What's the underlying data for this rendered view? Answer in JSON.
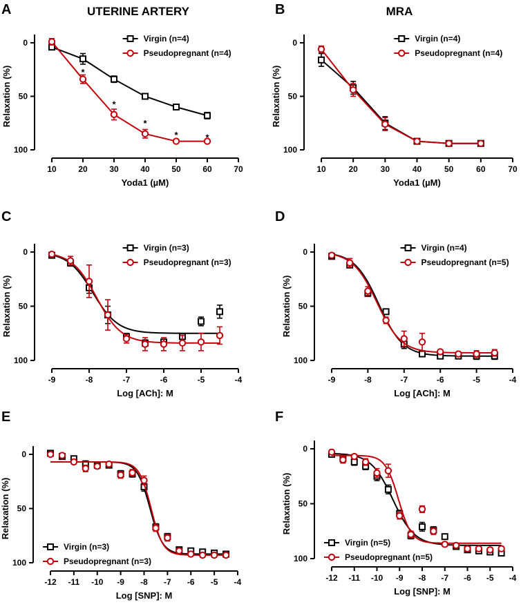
{
  "figure": {
    "colors": {
      "virgin": "#000000",
      "pseudopregnant": "#c0000b"
    }
  },
  "chart_data": [
    {
      "panel": "A",
      "title": "UTERINE ARTERY",
      "type": "line",
      "xlabel": "Yoda1 (µM)",
      "ylabel": "Relaxation (%)",
      "xlim": [
        10,
        70
      ],
      "ylim": [
        0,
        100
      ],
      "y_inverted": true,
      "xticks": [
        "10",
        "20",
        "30",
        "40",
        "50",
        "60",
        "70"
      ],
      "yticks": [
        "0",
        "50",
        "100"
      ],
      "legend_position": "top-right",
      "series": [
        {
          "name": "Virgin (n=4)",
          "marker": "square",
          "color": "#000000",
          "x": [
            10,
            20,
            30,
            40,
            50,
            60
          ],
          "y": [
            4,
            15,
            34,
            50,
            60,
            68
          ],
          "err": [
            2,
            5,
            3,
            2,
            2,
            3
          ]
        },
        {
          "name": "Pseudopregnant (n=4)",
          "marker": "circle",
          "color": "#c0000b",
          "x": [
            10,
            20,
            30,
            40,
            50,
            60
          ],
          "y": [
            -1,
            34,
            67,
            85,
            92,
            92
          ],
          "err": [
            3,
            4,
            5,
            4,
            1,
            1
          ]
        }
      ],
      "annotations": [
        {
          "x": 20,
          "y": 25,
          "text": "*"
        },
        {
          "x": 30,
          "y": 55,
          "text": "*"
        },
        {
          "x": 40,
          "y": 73,
          "text": "*"
        },
        {
          "x": 50,
          "y": 84,
          "text": "*"
        },
        {
          "x": 60,
          "y": 86,
          "text": "*"
        }
      ]
    },
    {
      "panel": "B",
      "title": "MRA",
      "type": "line",
      "xlabel": "Yoda1 (µM)",
      "ylabel": "Relaxation (%)",
      "xlim": [
        10,
        70
      ],
      "ylim": [
        0,
        100
      ],
      "y_inverted": true,
      "xticks": [
        "10",
        "20",
        "30",
        "40",
        "50",
        "60",
        "70"
      ],
      "yticks": [
        "0",
        "50",
        "100"
      ],
      "legend_position": "top-right",
      "series": [
        {
          "name": "Virgin (n=4)",
          "marker": "square",
          "color": "#000000",
          "x": [
            10,
            20,
            30,
            40,
            50,
            60
          ],
          "y": [
            16,
            42,
            75,
            92,
            94,
            94
          ],
          "err": [
            6,
            6,
            6,
            2,
            1,
            1
          ]
        },
        {
          "name": "Pseudopregnant (n=4)",
          "marker": "circle",
          "color": "#c0000b",
          "x": [
            10,
            20,
            30,
            40,
            50,
            60
          ],
          "y": [
            6,
            44,
            76,
            92,
            94,
            94
          ],
          "err": [
            3,
            6,
            6,
            2,
            1,
            1
          ]
        }
      ],
      "annotations": []
    },
    {
      "panel": "C",
      "title": "",
      "type": "scatter",
      "xlabel": "Log [ACh]: M",
      "ylabel": "Relaxation (%)",
      "xlim": [
        -9,
        -4
      ],
      "ylim": [
        0,
        100
      ],
      "y_inverted": true,
      "xticks": [
        "-9",
        "-8",
        "-7",
        "-6",
        "-5",
        "-4"
      ],
      "yticks": [
        "0",
        "50",
        "100"
      ],
      "legend_position": "top-right",
      "series": [
        {
          "name": "Virgin (n=3)",
          "marker": "square",
          "color": "#000000",
          "x": [
            -9,
            -8.5,
            -8,
            -7.5,
            -7,
            -6.5,
            -6,
            -5.5,
            -5,
            -4.5
          ],
          "y": [
            3,
            10,
            33,
            58,
            78,
            84,
            83,
            78,
            64,
            55
          ],
          "err": [
            1,
            3,
            5,
            8,
            3,
            3,
            2,
            2,
            4,
            6
          ],
          "fit": {
            "bottom": 0,
            "top": 75,
            "logec50": -7.9,
            "hill": 1.3
          }
        },
        {
          "name": "Pseudopregnant (n=3)",
          "marker": "circle",
          "color": "#c0000b",
          "x": [
            -9,
            -8.5,
            -8,
            -7.5,
            -7,
            -6.5,
            -6,
            -5.5,
            -5,
            -4.5
          ],
          "y": [
            2,
            8,
            27,
            58,
            80,
            85,
            85,
            84,
            83,
            77
          ],
          "err": [
            1,
            4,
            15,
            14,
            4,
            6,
            6,
            7,
            8,
            8
          ],
          "fit": {
            "bottom": 0,
            "top": 84,
            "logec50": -7.8,
            "hill": 1.3
          }
        }
      ],
      "annotations": []
    },
    {
      "panel": "D",
      "title": "",
      "type": "scatter",
      "xlabel": "Log [ACh]: M",
      "ylabel": "Relaxation (%)",
      "xlim": [
        -9,
        -4
      ],
      "ylim": [
        0,
        100
      ],
      "y_inverted": true,
      "xticks": [
        "-9",
        "-8",
        "-7",
        "-6",
        "-5",
        "-4"
      ],
      "yticks": [
        "0",
        "50",
        "100"
      ],
      "legend_position": "top-right",
      "series": [
        {
          "name": "Virgin (n=4)",
          "marker": "square",
          "color": "#000000",
          "x": [
            -9,
            -8.5,
            -8,
            -7.5,
            -7,
            -6.5,
            -6,
            -5.5,
            -5,
            -4.5
          ],
          "y": [
            4,
            12,
            38,
            55,
            85,
            94,
            96,
            96,
            96,
            96
          ],
          "err": [
            1,
            2,
            3,
            2,
            4,
            1,
            2,
            2,
            3,
            3
          ],
          "fit": {
            "bottom": 0,
            "top": 96,
            "logec50": -7.7,
            "hill": 1.3
          }
        },
        {
          "name": "Pseudopregnant (n=5)",
          "marker": "circle",
          "color": "#c0000b",
          "x": [
            -9,
            -8.5,
            -8,
            -7.5,
            -7,
            -6.5,
            -6,
            -5.5,
            -5,
            -4.5
          ],
          "y": [
            3,
            10,
            36,
            63,
            80,
            83,
            92,
            94,
            94,
            93
          ],
          "err": [
            1,
            4,
            4,
            3,
            7,
            8,
            1,
            1,
            3,
            3
          ],
          "fit": {
            "bottom": 0,
            "top": 93,
            "logec50": -7.75,
            "hill": 1.3
          }
        }
      ],
      "annotations": []
    },
    {
      "panel": "E",
      "title": "",
      "type": "scatter",
      "xlabel": "Log [SNP]: M",
      "ylabel": "Relaxation (%)",
      "xlim": [
        -12,
        -4
      ],
      "ylim": [
        0,
        100
      ],
      "y_inverted": true,
      "xticks": [
        "-12",
        "-11",
        "-10",
        "-9",
        "-8",
        "-7",
        "-6",
        "-5",
        "-4"
      ],
      "yticks": [
        "0",
        "50",
        "100"
      ],
      "legend_position": "bottom-left",
      "series": [
        {
          "name": "Virgin (n=3)",
          "marker": "square",
          "color": "#000000",
          "x": [
            -12,
            -11.5,
            -11,
            -10.5,
            -10,
            -9.5,
            -9,
            -8.5,
            -8,
            -7.5,
            -7,
            -6.5,
            -6,
            -5.5,
            -5,
            -4.5
          ],
          "y": [
            -1,
            2,
            4,
            9,
            10,
            10,
            18,
            18,
            30,
            67,
            76,
            88,
            89,
            90,
            91,
            92
          ],
          "err": [
            1,
            1,
            2,
            3,
            3,
            2,
            3,
            3,
            4,
            3,
            3,
            2,
            2,
            2,
            2,
            2
          ],
          "fit": {
            "bottom": 7,
            "top": 92,
            "logec50": -7.75,
            "hill": 1.6
          }
        },
        {
          "name": "Pseudopregnant (n=3)",
          "marker": "circle",
          "color": "#c0000b",
          "x": [
            -12,
            -11.5,
            -11,
            -10.5,
            -10,
            -9.5,
            -9,
            -8.5,
            -8,
            -7.5,
            -7,
            -6.5,
            -6,
            -5.5,
            -5,
            -4.5
          ],
          "y": [
            0,
            1,
            7,
            13,
            11,
            9,
            19,
            17,
            24,
            68,
            77,
            89,
            92,
            93,
            93,
            93
          ],
          "err": [
            1,
            1,
            2,
            3,
            2,
            2,
            3,
            3,
            4,
            3,
            3,
            2,
            2,
            2,
            2,
            2
          ],
          "fit": {
            "bottom": 7,
            "top": 93,
            "logec50": -7.7,
            "hill": 1.7
          }
        }
      ],
      "annotations": []
    },
    {
      "panel": "F",
      "title": "",
      "type": "scatter",
      "xlabel": "Log [SNP]: M",
      "ylabel": "Relaxation (%)",
      "xlim": [
        -12,
        -4
      ],
      "ylim": [
        0,
        100
      ],
      "y_inverted": true,
      "xticks": [
        "-12",
        "-11",
        "-10",
        "-9",
        "-8",
        "-7",
        "-6",
        "-5",
        "-4"
      ],
      "yticks": [
        "0",
        "50",
        "100"
      ],
      "legend_position": "bottom-left",
      "series": [
        {
          "name": "Virgin (n=5)",
          "marker": "square",
          "color": "#000000",
          "x": [
            -12,
            -11.5,
            -11,
            -10.5,
            -10,
            -9.5,
            -9,
            -8.5,
            -8,
            -7.5,
            -7,
            -6.5,
            -6,
            -5.5,
            -5,
            -4.5
          ],
          "y": [
            5,
            9,
            12,
            16,
            25,
            37,
            59,
            79,
            71,
            74,
            80,
            89,
            92,
            93,
            94,
            95
          ],
          "err": [
            2,
            3,
            3,
            3,
            4,
            4,
            3,
            3,
            4,
            3,
            2,
            2,
            2,
            2,
            2,
            2
          ],
          "fit": {
            "bottom": 4,
            "top": 88,
            "logec50": -9.3,
            "hill": 0.9
          }
        },
        {
          "name": "Pseudopregnant (n=5)",
          "marker": "circle",
          "color": "#c0000b",
          "x": [
            -12,
            -11.5,
            -11,
            -10.5,
            -10,
            -9.5,
            -9,
            -8.5,
            -8,
            -7.5,
            -7,
            -6.5,
            -6,
            -5.5,
            -5,
            -4.5
          ],
          "y": [
            3,
            10,
            7,
            12,
            22,
            20,
            61,
            78,
            55,
            75,
            87,
            88,
            91,
            91,
            92,
            91
          ],
          "err": [
            2,
            3,
            2,
            3,
            4,
            6,
            3,
            3,
            3,
            3,
            2,
            2,
            2,
            2,
            2,
            2
          ],
          "fit": {
            "bottom": 6,
            "top": 86,
            "logec50": -9.05,
            "hill": 1.5
          }
        }
      ],
      "annotations": []
    }
  ]
}
